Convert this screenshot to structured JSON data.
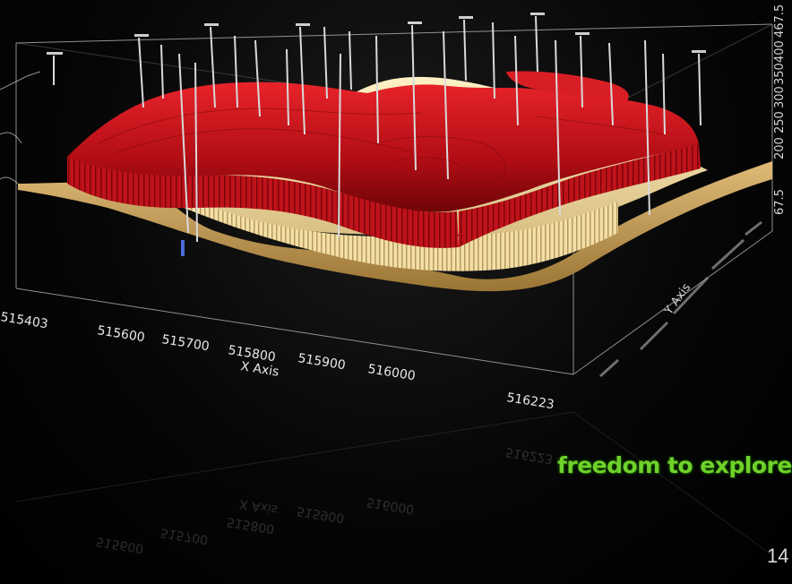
{
  "plot": {
    "x_axis": {
      "title": "X Axis",
      "ticks": [
        "515403",
        "515600",
        "515700",
        "515800",
        "515900",
        "516000",
        "516223"
      ]
    },
    "y_axis": {
      "title": "Y Axis"
    },
    "z_axis": {
      "ticks": [
        "67.5",
        "200",
        "250",
        "300",
        "350",
        "400",
        "467.5"
      ]
    },
    "layers": [
      {
        "name": "upper-surface",
        "color": "#c8141a"
      },
      {
        "name": "middle-surface",
        "color": "#f0dca0"
      },
      {
        "name": "base-surface",
        "color": "#d6ad6a"
      }
    ]
  },
  "footer": {
    "tagline": "freedom to explore",
    "page_number": "14"
  }
}
